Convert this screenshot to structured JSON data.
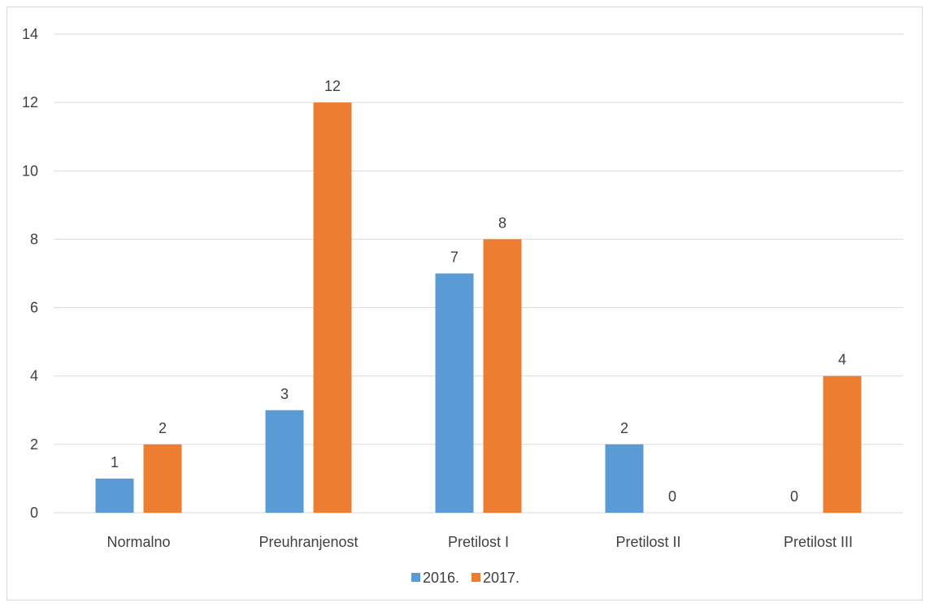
{
  "chart_data": {
    "type": "bar",
    "categories": [
      "Normalno",
      "Preuhranjenost",
      "Pretilost I",
      "Pretilost II",
      "Pretilost III"
    ],
    "series": [
      {
        "name": "2016.",
        "color": "#5b9bd5",
        "values": [
          1,
          3,
          7,
          2,
          0
        ]
      },
      {
        "name": "2017.",
        "color": "#ed7d31",
        "values": [
          2,
          12,
          8,
          0,
          4
        ]
      }
    ],
    "title": "",
    "xlabel": "",
    "ylabel": "",
    "ylim": [
      0,
      14
    ],
    "yticks": [
      0,
      2,
      4,
      6,
      8,
      10,
      12,
      14
    ],
    "grid": true,
    "data_labels": true,
    "legend_position": "bottom"
  }
}
